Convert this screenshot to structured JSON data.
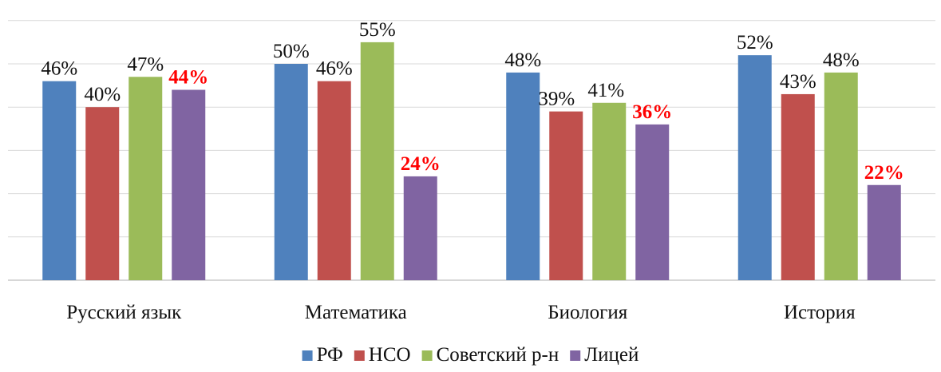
{
  "chart_data": {
    "type": "bar",
    "categories": [
      "Русский язык",
      "Математика",
      "Биология",
      "История"
    ],
    "series": [
      {
        "name": "РФ",
        "color": "#4f81bd",
        "values": [
          46,
          50,
          48,
          52
        ]
      },
      {
        "name": "НСО",
        "color": "#c0504d",
        "values": [
          40,
          46,
          39,
          43
        ]
      },
      {
        "name": "Советский р-н",
        "color": "#9bbb59",
        "values": [
          47,
          55,
          41,
          48
        ]
      },
      {
        "name": "Лицей",
        "color": "#8064a2",
        "values": [
          44,
          24,
          36,
          22
        ],
        "highlight": true
      }
    ],
    "value_suffix": "%",
    "ylim": [
      0,
      60
    ],
    "y_gridlines": [
      10,
      20,
      30,
      40,
      50,
      60
    ],
    "y_tick_labels_shown": false,
    "grid": true,
    "legend_position": "bottom",
    "highlight_color": "#ff0000",
    "title": "",
    "xlabel": "",
    "ylabel": ""
  }
}
